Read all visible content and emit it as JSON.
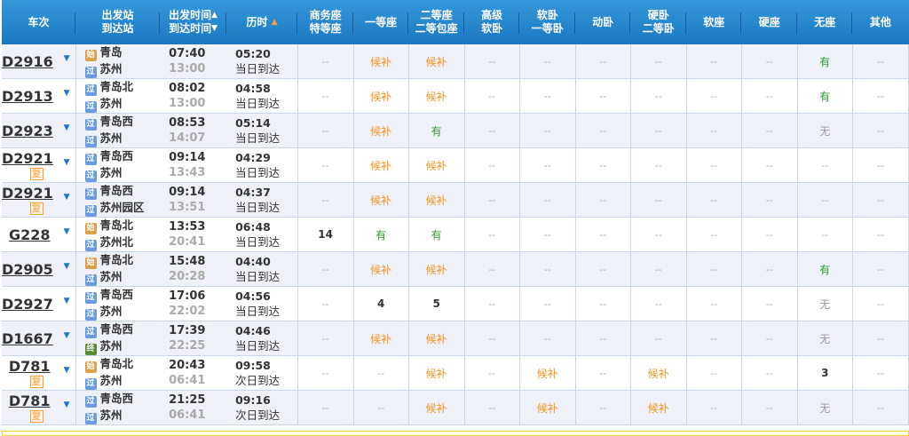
{
  "header": {
    "train": "车次",
    "station": [
      "出发站",
      "到达站"
    ],
    "time": [
      "出发时间",
      "到达时间"
    ],
    "duration": "历时",
    "seats": [
      [
        "商务座",
        "特等座"
      ],
      [
        "一等座"
      ],
      [
        "二等座",
        "二等包座"
      ],
      [
        "高级",
        "软卧"
      ],
      [
        "软卧",
        "一等卧"
      ],
      [
        "动卧"
      ],
      [
        "硬卧",
        "二等卧"
      ],
      [
        "软座"
      ],
      [
        "硬座"
      ],
      [
        "无座"
      ],
      [
        "其他"
      ]
    ]
  },
  "badges": {
    "start": "始",
    "pass": "过",
    "end": "终",
    "fu": "复"
  },
  "colors": {
    "header": "#1a78c2",
    "wait": "#f7941d",
    "available": "#2f9a2f",
    "row_alt": "#eef1f8"
  },
  "rows": [
    {
      "no": "D2916",
      "fu": false,
      "from": "青岛",
      "from_type": "start",
      "to": "苏州",
      "to_type": "pass",
      "dep": "07:40",
      "arr": "13:00",
      "dur": "05:20",
      "arrive_day": "当日到达",
      "seats": [
        "--",
        "候补",
        "候补",
        "--",
        "--",
        "--",
        "--",
        "--",
        "--",
        "有",
        "--"
      ]
    },
    {
      "no": "D2913",
      "fu": false,
      "from": "青岛北",
      "from_type": "pass",
      "to": "苏州",
      "to_type": "pass",
      "dep": "08:02",
      "arr": "13:00",
      "dur": "04:58",
      "arrive_day": "当日到达",
      "seats": [
        "--",
        "候补",
        "候补",
        "--",
        "--",
        "--",
        "--",
        "--",
        "--",
        "有",
        "--"
      ]
    },
    {
      "no": "D2923",
      "fu": false,
      "from": "青岛西",
      "from_type": "pass",
      "to": "苏州",
      "to_type": "pass",
      "dep": "08:53",
      "arr": "14:07",
      "dur": "05:14",
      "arrive_day": "当日到达",
      "seats": [
        "--",
        "候补",
        "有",
        "--",
        "--",
        "--",
        "--",
        "--",
        "--",
        "无",
        "--"
      ]
    },
    {
      "no": "D2921",
      "fu": true,
      "from": "青岛西",
      "from_type": "pass",
      "to": "苏州",
      "to_type": "pass",
      "dep": "09:14",
      "arr": "13:43",
      "dur": "04:29",
      "arrive_day": "当日到达",
      "seats": [
        "--",
        "候补",
        "候补",
        "--",
        "--",
        "--",
        "--",
        "--",
        "--",
        "--",
        "--"
      ]
    },
    {
      "no": "D2921",
      "fu": true,
      "from": "青岛西",
      "from_type": "pass",
      "to": "苏州园区",
      "to_type": "pass",
      "dep": "09:14",
      "arr": "13:51",
      "dur": "04:37",
      "arrive_day": "当日到达",
      "seats": [
        "--",
        "候补",
        "候补",
        "--",
        "--",
        "--",
        "--",
        "--",
        "--",
        "--",
        "--"
      ]
    },
    {
      "no": "G228",
      "fu": false,
      "from": "青岛北",
      "from_type": "start",
      "to": "苏州北",
      "to_type": "pass",
      "dep": "13:53",
      "arr": "20:41",
      "dur": "06:48",
      "arrive_day": "当日到达",
      "seats": [
        "14",
        "有",
        "有",
        "--",
        "--",
        "--",
        "--",
        "--",
        "--",
        "--",
        "--"
      ]
    },
    {
      "no": "D2905",
      "fu": false,
      "from": "青岛北",
      "from_type": "start",
      "to": "苏州",
      "to_type": "pass",
      "dep": "15:48",
      "arr": "20:28",
      "dur": "04:40",
      "arrive_day": "当日到达",
      "seats": [
        "--",
        "候补",
        "候补",
        "--",
        "--",
        "--",
        "--",
        "--",
        "--",
        "有",
        "--"
      ]
    },
    {
      "no": "D2927",
      "fu": false,
      "from": "青岛西",
      "from_type": "pass",
      "to": "苏州",
      "to_type": "pass",
      "dep": "17:06",
      "arr": "22:02",
      "dur": "04:56",
      "arrive_day": "当日到达",
      "seats": [
        "--",
        "4",
        "5",
        "--",
        "--",
        "--",
        "--",
        "--",
        "--",
        "无",
        "--"
      ]
    },
    {
      "no": "D1667",
      "fu": false,
      "from": "青岛西",
      "from_type": "pass",
      "to": "苏州",
      "to_type": "end",
      "dep": "17:39",
      "arr": "22:25",
      "dur": "04:46",
      "arrive_day": "当日到达",
      "seats": [
        "--",
        "候补",
        "候补",
        "--",
        "--",
        "--",
        "--",
        "--",
        "--",
        "无",
        "--"
      ]
    },
    {
      "no": "D781",
      "fu": true,
      "from": "青岛北",
      "from_type": "start",
      "to": "苏州",
      "to_type": "pass",
      "dep": "20:43",
      "arr": "06:41",
      "dur": "09:58",
      "arrive_day": "次日到达",
      "seats": [
        "--",
        "--",
        "候补",
        "--",
        "候补",
        "--",
        "候补",
        "--",
        "--",
        "3",
        "--"
      ]
    },
    {
      "no": "D781",
      "fu": true,
      "from": "青岛西",
      "from_type": "pass",
      "to": "苏州",
      "to_type": "pass",
      "dep": "21:25",
      "arr": "06:41",
      "dur": "09:16",
      "arrive_day": "次日到达",
      "seats": [
        "--",
        "--",
        "候补",
        "--",
        "候补",
        "--",
        "候补",
        "--",
        "--",
        "无",
        "--"
      ]
    }
  ]
}
